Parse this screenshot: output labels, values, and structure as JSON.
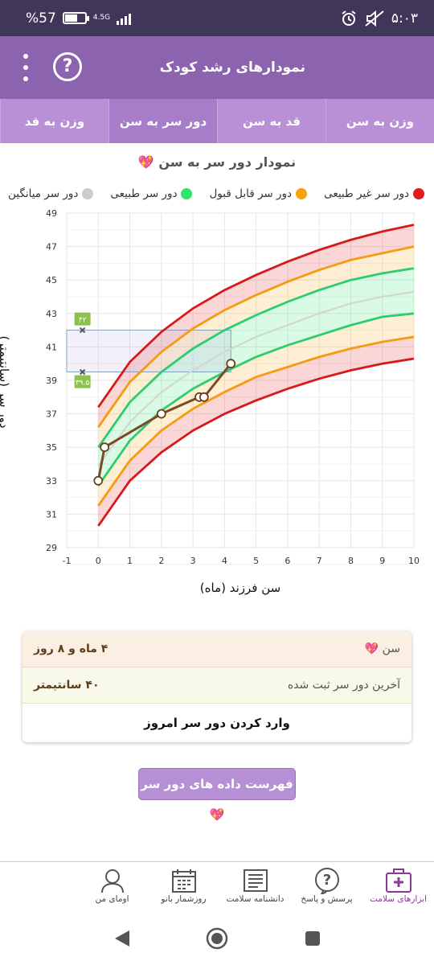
{
  "status": {
    "time": "۵:۰۳",
    "battery": "%57",
    "net": "4.5G"
  },
  "header": {
    "title": "نمودارهای رشد کودک",
    "help_symbol": "?"
  },
  "tabs": [
    {
      "label": "وزن به سن",
      "active": false
    },
    {
      "label": "قد به سن",
      "active": false
    },
    {
      "label": "دور سر به سن",
      "active": true
    },
    {
      "label": "وزن به قد",
      "active": false
    }
  ],
  "chart_title": "نمودار دور سر به سن 💖",
  "legend": [
    {
      "label": "دور سر غیر طبیعی",
      "color": "#e41a1c"
    },
    {
      "label": "دور سر قابل قبول",
      "color": "#f7a20a"
    },
    {
      "label": "دور سر طبیعی",
      "color": "#2ee66b"
    },
    {
      "label": "دور سر میانگین",
      "color": "#cccccc"
    }
  ],
  "chart_data": {
    "type": "line",
    "xlabel": "سن فرزند (ماه)",
    "ylabel": "دور سر (سانتیمتر)",
    "xlim": [
      -1,
      10
    ],
    "ylim": [
      29,
      49
    ],
    "xticks": [
      "-1",
      "0",
      "1",
      "2",
      "3",
      "4",
      "5",
      "6",
      "7",
      "8",
      "9",
      "10"
    ],
    "yticks": [
      "29",
      "31",
      "33",
      "35",
      "37",
      "39",
      "41",
      "43",
      "45",
      "47",
      "49"
    ],
    "x": [
      0,
      1,
      2,
      3,
      4,
      5,
      6,
      7,
      8,
      9,
      10
    ],
    "series": [
      {
        "name": "دور سر غیر طبیعی",
        "role": "upper-abnormal",
        "color": "#d7191c",
        "values": [
          37.4,
          40.1,
          41.9,
          43.3,
          44.4,
          45.3,
          46.1,
          46.8,
          47.4,
          47.9,
          48.3
        ]
      },
      {
        "name": "دور سر قابل قبول",
        "role": "upper-acceptable",
        "color": "#f39c12",
        "values": [
          36.2,
          38.9,
          40.7,
          42.1,
          43.2,
          44.1,
          44.9,
          45.6,
          46.2,
          46.6,
          47.0
        ]
      },
      {
        "name": "دور سر طبیعی",
        "role": "upper-normal",
        "color": "#2ecc71",
        "values": [
          35.0,
          37.7,
          39.5,
          40.9,
          42.0,
          42.9,
          43.7,
          44.4,
          45.0,
          45.4,
          45.7
        ]
      },
      {
        "name": "دور سر میانگین",
        "role": "median",
        "color": "#cfd8d4",
        "values": [
          33.9,
          36.5,
          38.3,
          39.6,
          40.7,
          41.6,
          42.3,
          43.0,
          43.6,
          44.0,
          44.3
        ]
      },
      {
        "name": "دور سر طبیعی",
        "role": "lower-normal",
        "color": "#2ecc71",
        "values": [
          32.7,
          35.4,
          37.2,
          38.5,
          39.5,
          40.4,
          41.1,
          41.7,
          42.3,
          42.8,
          43.0
        ]
      },
      {
        "name": "دور سر قابل قبول",
        "role": "lower-acceptable",
        "color": "#f39c12",
        "values": [
          31.5,
          34.2,
          36.0,
          37.3,
          38.3,
          39.2,
          39.8,
          40.4,
          40.9,
          41.3,
          41.6
        ]
      },
      {
        "name": "دور سر غیر طبیعی",
        "role": "lower-abnormal",
        "color": "#d7191c",
        "values": [
          30.3,
          33.0,
          34.7,
          36.0,
          37.0,
          37.8,
          38.5,
          39.1,
          39.6,
          40.0,
          40.3
        ]
      }
    ],
    "child": {
      "color": "#7a4a24",
      "points": [
        [
          0,
          33
        ],
        [
          0.2,
          35
        ],
        [
          2,
          37
        ],
        [
          3.2,
          38
        ],
        [
          3.35,
          38
        ],
        [
          4.2,
          40
        ]
      ]
    },
    "range_markers": {
      "upper_label": "۴۲",
      "lower_label": "۳۹.۵",
      "upper": 42,
      "lower": 39.5
    }
  },
  "info": {
    "age_key": "سن 💖",
    "age_value": "۴ ماه و ۸ روز",
    "last_key": "آخرین دور سر ثبت شده",
    "last_value": "۴۰ سانتیمتر",
    "enter_label": "وارد کردن دور سر امروز"
  },
  "list_button": "فهرست داده های دور سر 💖",
  "bottom_nav": [
    {
      "label": "ابزارهای سلامت",
      "icon": "health-kit-icon",
      "active": true
    },
    {
      "label": "پرسش و پاسخ",
      "icon": "question-bubble-icon",
      "active": false
    },
    {
      "label": "دانشنامه سلامت",
      "icon": "encyclopedia-icon",
      "active": false
    },
    {
      "label": "روزشمار بانو",
      "icon": "calendar-icon",
      "active": false
    },
    {
      "label": "اومای من",
      "icon": "profile-icon",
      "active": false
    }
  ]
}
